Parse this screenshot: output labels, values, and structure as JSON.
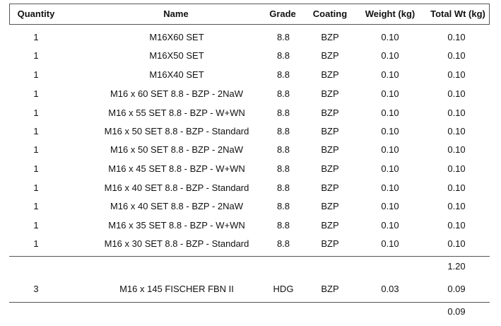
{
  "columns": {
    "quantity": "Quantity",
    "name": "Name",
    "grade": "Grade",
    "coating": "Coating",
    "weight": "Weight (kg)",
    "total": "Total Wt (kg)"
  },
  "groups": [
    {
      "rows": [
        {
          "qty": "1",
          "name": "M16X60 SET",
          "grade": "8.8",
          "coating": "BZP",
          "weight": "0.10",
          "total": "0.10"
        },
        {
          "qty": "1",
          "name": "M16X50 SET",
          "grade": "8.8",
          "coating": "BZP",
          "weight": "0.10",
          "total": "0.10"
        },
        {
          "qty": "1",
          "name": "M16X40 SET",
          "grade": "8.8",
          "coating": "BZP",
          "weight": "0.10",
          "total": "0.10"
        },
        {
          "qty": "1",
          "name": "M16 x 60 SET 8.8 - BZP - 2NaW",
          "grade": "8.8",
          "coating": "BZP",
          "weight": "0.10",
          "total": "0.10"
        },
        {
          "qty": "1",
          "name": "M16 x 55 SET 8.8 - BZP - W+WN",
          "grade": "8.8",
          "coating": "BZP",
          "weight": "0.10",
          "total": "0.10"
        },
        {
          "qty": "1",
          "name": "M16 x 50 SET 8.8 - BZP - Standard",
          "grade": "8.8",
          "coating": "BZP",
          "weight": "0.10",
          "total": "0.10"
        },
        {
          "qty": "1",
          "name": "M16 x 50 SET 8.8 - BZP - 2NaW",
          "grade": "8.8",
          "coating": "BZP",
          "weight": "0.10",
          "total": "0.10"
        },
        {
          "qty": "1",
          "name": "M16 x 45 SET 8.8 - BZP - W+WN",
          "grade": "8.8",
          "coating": "BZP",
          "weight": "0.10",
          "total": "0.10"
        },
        {
          "qty": "1",
          "name": "M16 x 40 SET 8.8 - BZP - Standard",
          "grade": "8.8",
          "coating": "BZP",
          "weight": "0.10",
          "total": "0.10"
        },
        {
          "qty": "1",
          "name": "M16 x 40 SET 8.8 - BZP - 2NaW",
          "grade": "8.8",
          "coating": "BZP",
          "weight": "0.10",
          "total": "0.10"
        },
        {
          "qty": "1",
          "name": "M16 x 35 SET 8.8 - BZP - W+WN",
          "grade": "8.8",
          "coating": "BZP",
          "weight": "0.10",
          "total": "0.10"
        },
        {
          "qty": "1",
          "name": "M16 x 30 SET 8.8 - BZP - Standard",
          "grade": "8.8",
          "coating": "BZP",
          "weight": "0.10",
          "total": "0.10"
        }
      ],
      "subtotal": "1.20"
    },
    {
      "rows": [
        {
          "qty": "3",
          "name": "M16 x 145 FISCHER FBN II",
          "grade": "HDG",
          "coating": "BZP",
          "weight": "0.03",
          "total": "0.09"
        }
      ],
      "subtotal": "0.09"
    }
  ]
}
